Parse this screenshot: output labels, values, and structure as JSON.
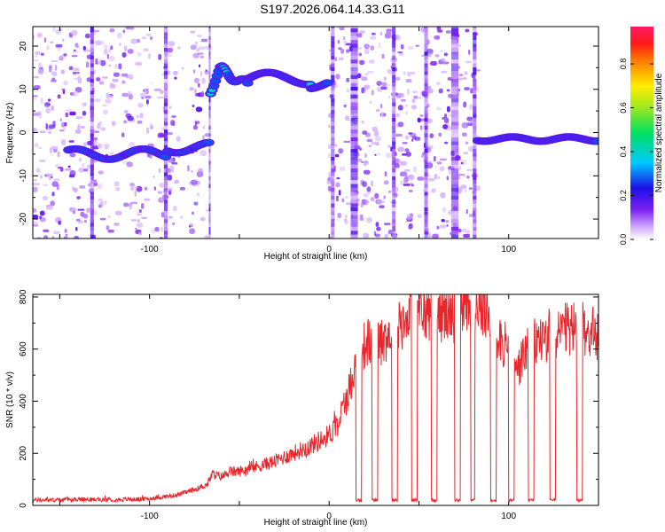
{
  "title": "S197.2026.064.14.33.G11",
  "chart_data": [
    {
      "type": "heatmap",
      "title": "S197.2026.064.14.33.G11",
      "xlabel": "Height of straight line (km)",
      "ylabel": "Frequency (Hz)",
      "xlim": [
        -165,
        150
      ],
      "ylim": [
        -24.5,
        24.5
      ],
      "xticks": [
        -100,
        0,
        100
      ],
      "yticks": [
        -20,
        -10,
        0,
        10,
        20
      ],
      "colorbar": {
        "label": "Normalized spectral amplitude",
        "range": [
          0.0,
          0.97
        ],
        "ticks": [
          0.0,
          0.2,
          0.4,
          0.6,
          0.8
        ],
        "tick_labels": [
          "0.0",
          "0.2",
          "0.4",
          "0.6",
          "0.8"
        ]
      },
      "ridge_segments": [
        {
          "x_start": -145,
          "x_end": -67,
          "freq": -5,
          "note": "weak ridge"
        },
        {
          "x_start": -66,
          "x_end": -45,
          "freq": 14,
          "note": "moderate ridge"
        },
        {
          "x_start": -45,
          "x_end": 0,
          "freq": 12.5,
          "note": "strong ridge, peak near -22 km"
        },
        {
          "x_start": 83,
          "x_end": 150,
          "freq": -1.5,
          "note": "strong ridge, peaks near 110 and 123 km"
        }
      ],
      "blank_ranges": [
        [
          -67,
          0
        ],
        [
          83,
          150
        ]
      ]
    },
    {
      "type": "line",
      "xlabel": "Height of straight line (km)",
      "ylabel": "SNR (10 * v/v)",
      "xlim": [
        -165,
        150
      ],
      "ylim": [
        0,
        810
      ],
      "xticks": [
        -100,
        0,
        100
      ],
      "yticks": [
        0,
        200,
        400,
        600,
        800
      ],
      "series": [
        {
          "name": "SNR",
          "color": "#e8262b",
          "x": [
            -165,
            -140,
            -120,
            -100,
            -85,
            -75,
            -68,
            -65,
            -60,
            -55,
            -50,
            -40,
            -30,
            -20,
            -10,
            0,
            5,
            10,
            15,
            20,
            30,
            40,
            50,
            60,
            70,
            80,
            90,
            95,
            100,
            105,
            110,
            120,
            130,
            140,
            150
          ],
          "values": [
            20,
            22,
            22,
            25,
            40,
            60,
            80,
            120,
            110,
            130,
            130,
            150,
            170,
            200,
            230,
            270,
            320,
            420,
            540,
            620,
            640,
            700,
            740,
            740,
            740,
            760,
            720,
            650,
            580,
            520,
            600,
            650,
            670,
            680,
            650
          ]
        }
      ],
      "dropouts_x": [
        [
          15,
          18
        ],
        [
          24,
          27
        ],
        [
          35,
          38
        ],
        [
          46,
          49
        ],
        [
          57,
          60
        ],
        [
          70,
          73
        ],
        [
          79,
          81
        ],
        [
          90,
          93
        ],
        [
          100,
          103
        ],
        [
          111,
          114
        ],
        [
          123,
          126
        ],
        [
          138,
          141
        ]
      ],
      "dropout_value": 20
    }
  ]
}
